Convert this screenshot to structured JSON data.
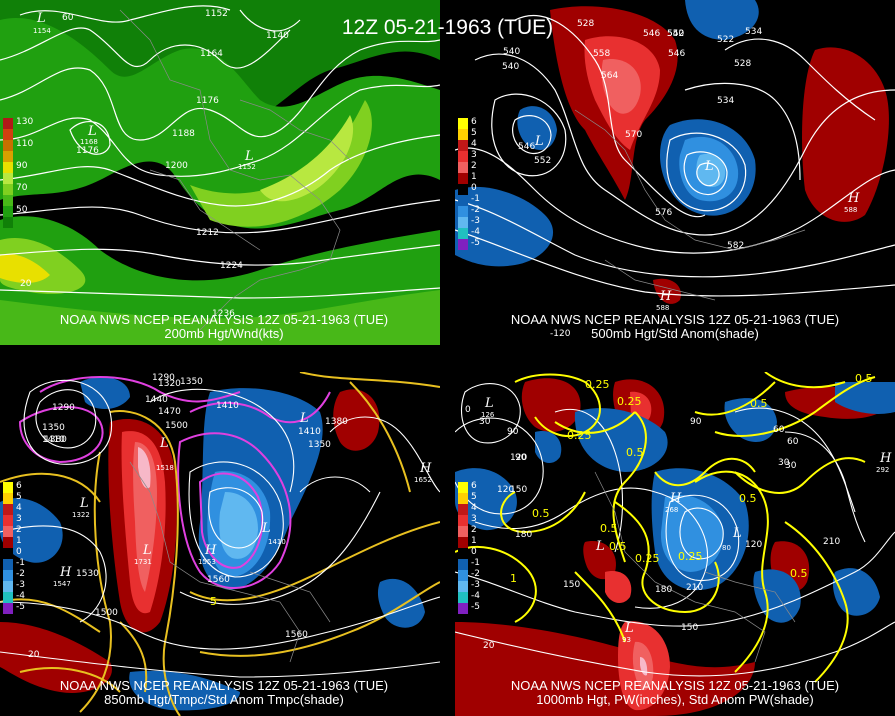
{
  "title": "12Z 05-21-1963 (TUE)",
  "panels": [
    {
      "id": "p1",
      "caption1": "NOAA NWS NCEP REANALYSIS 12Z 05-21-1963 (TUE)",
      "caption2": "200mb Hgt/Wnd(kts)",
      "legend": [
        {
          "label": "130",
          "color": "#b01818"
        },
        {
          "label": "",
          "color": "#d04010"
        },
        {
          "label": "110",
          "color": "#c87000"
        },
        {
          "label": "",
          "color": "#d8a000"
        },
        {
          "label": "90",
          "color": "#e8e000"
        },
        {
          "label": "",
          "color": "#b8e840"
        },
        {
          "label": "70",
          "color": "#80d020"
        },
        {
          "label": "",
          "color": "#48b818"
        },
        {
          "label": "50",
          "color": "#20a010"
        },
        {
          "label": "",
          "color": "#108008"
        }
      ],
      "contour_labels": [
        "1152",
        "1140",
        "1164",
        "1176",
        "1188",
        "1200",
        "1212",
        "1224",
        "1236",
        "1176",
        "1152",
        "1168",
        "1154",
        "1140"
      ],
      "lows": [
        {
          "t": "L",
          "v": "1154"
        },
        {
          "t": "L",
          "v": "1168"
        },
        {
          "t": "L",
          "v": "1152"
        }
      ],
      "edge_labels": [
        "60",
        "20"
      ]
    },
    {
      "id": "p2",
      "caption1": "NOAA NWS NCEP REANALYSIS 12Z 05-21-1963 (TUE)",
      "caption2": "500mb Hgt/Std Anom(shade)",
      "legend": [
        {
          "label": "6",
          "color": "#ffff00"
        },
        {
          "label": "5",
          "color": "#ffd000"
        },
        {
          "label": "4",
          "color": "#c01818"
        },
        {
          "label": "3",
          "color": "#e83030"
        },
        {
          "label": "2",
          "color": "#f06060"
        },
        {
          "label": "1",
          "color": "#a00000"
        },
        {
          "label": "0",
          "color": "#000000"
        },
        {
          "label": "-1",
          "color": "#1060b0"
        },
        {
          "label": "-2",
          "color": "#3090e0"
        },
        {
          "label": "-3",
          "color": "#60b8f0"
        },
        {
          "label": "-4",
          "color": "#20c0c0"
        },
        {
          "label": "-5",
          "color": "#8020c0"
        }
      ],
      "contour_labels": [
        "528",
        "546",
        "540",
        "522",
        "534",
        "540",
        "552",
        "558",
        "564",
        "528",
        "534",
        "546",
        "552",
        "570",
        "576",
        "582",
        "540",
        "546"
      ],
      "lows": [
        {
          "t": "L",
          "v": "528"
        },
        {
          "t": "L",
          "v": "540"
        },
        {
          "t": "L",
          "v": "546"
        },
        {
          "t": "L",
          "v": "534"
        },
        {
          "t": "L",
          "v": "540"
        }
      ],
      "highs": [
        {
          "t": "H",
          "v": "588"
        },
        {
          "t": "H",
          "v": "588"
        }
      ],
      "edge_labels": [
        "-120"
      ]
    },
    {
      "id": "p3",
      "caption1": "NOAA NWS NCEP REANALYSIS 12Z 05-21-1963 (TUE)",
      "caption2": "850mb Hgt/Tmpc/Std Anom Tmpc(shade)",
      "contour_labels": [
        "1290",
        "1320",
        "1350",
        "1440",
        "1470",
        "1500",
        "1410",
        "1380",
        "1410",
        "1290",
        "1350",
        "1380",
        "1410",
        "1530",
        "1500",
        "1560",
        "1560",
        "1350"
      ],
      "lows": [
        {
          "t": "L",
          "v": "1518"
        },
        {
          "t": "L",
          "v": "1322"
        },
        {
          "t": "L",
          "v": "1410"
        },
        {
          "t": "L",
          "v": "1731"
        },
        {
          "t": "L",
          "v": "1410"
        }
      ],
      "highs": [
        {
          "t": "H",
          "v": "1547"
        },
        {
          "t": "H",
          "v": "1652"
        },
        {
          "t": "H",
          "v": "1553"
        }
      ],
      "temp_labels": [
        "5"
      ],
      "edge_labels": [
        "20"
      ]
    },
    {
      "id": "p4",
      "caption1": "NOAA NWS NCEP REANALYSIS 12Z 05-21-1963 (TUE)",
      "caption2": "1000mb Hgt, PW(inches), Std Anom PW(shade)",
      "contour_labels": [
        "0",
        "30",
        "90",
        "120",
        "150",
        "180",
        "210",
        "150",
        "120",
        "90",
        "60",
        "30",
        "210",
        "180",
        "150",
        "120",
        "90",
        "60",
        "30"
      ],
      "pw_labels": [
        "0.25",
        "0.25",
        "0.25",
        "0.5",
        "0.5",
        "0.5",
        "0.25",
        "0.5",
        "0.25",
        "0.5",
        "0.5",
        "0.5",
        "1",
        "0.5"
      ],
      "lows": [
        {
          "t": "L",
          "v": "126"
        },
        {
          "t": "L",
          "v": "93"
        },
        {
          "t": "L",
          "v": "80"
        },
        {
          "t": "L",
          "v": "55"
        }
      ],
      "highs": [
        {
          "t": "H",
          "v": "292"
        },
        {
          "t": "H",
          "v": "268"
        }
      ],
      "edge_labels": [
        "20"
      ]
    }
  ]
}
